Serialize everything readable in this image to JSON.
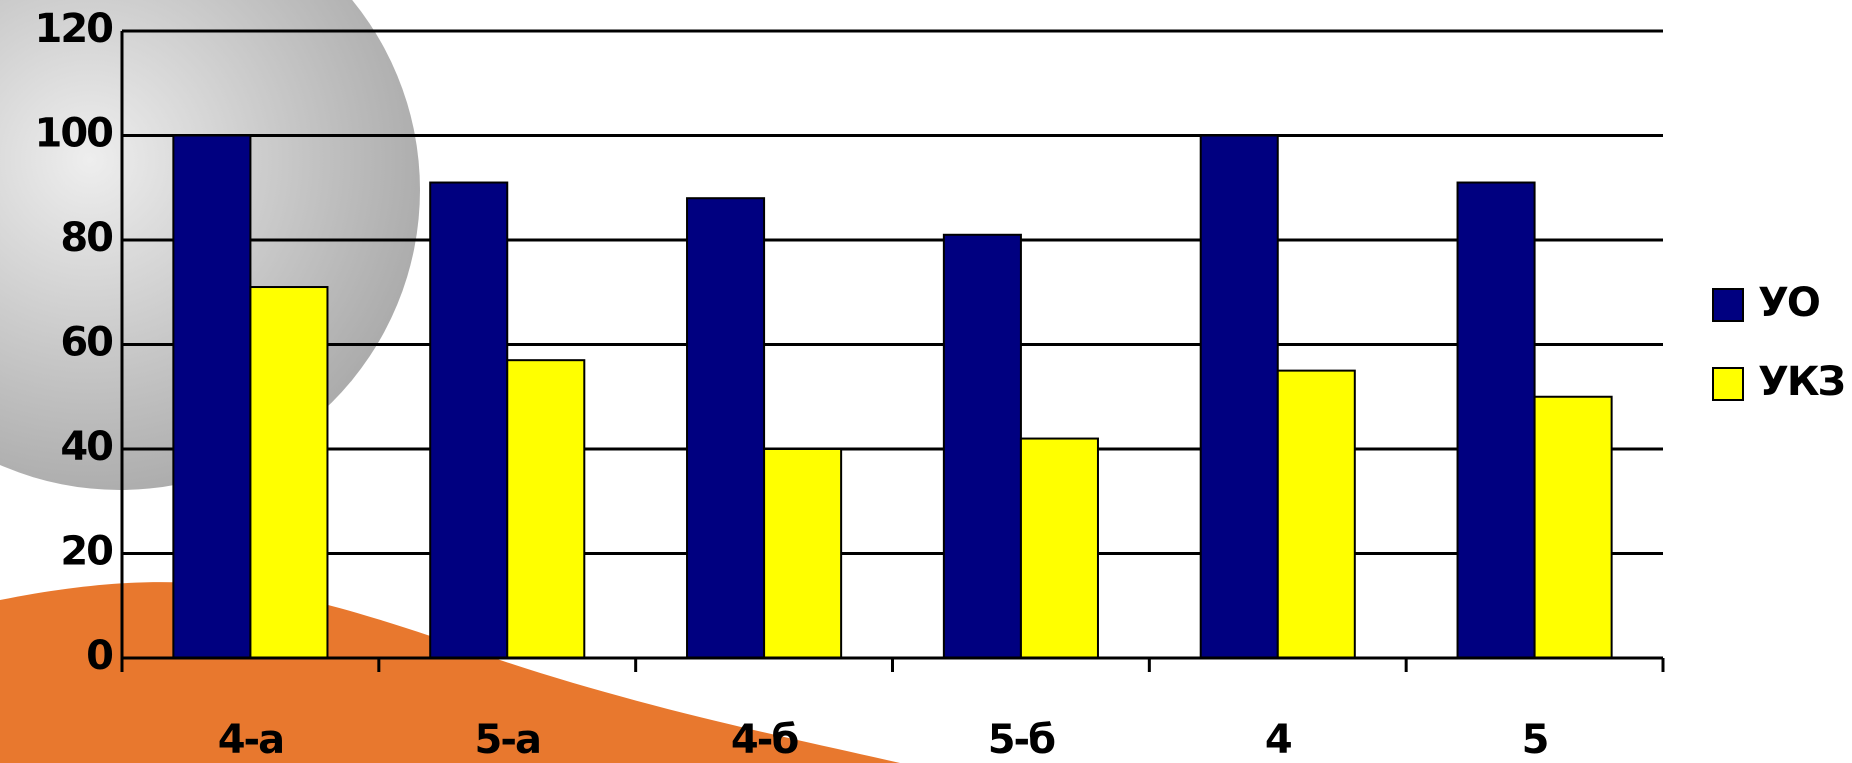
{
  "chart_data": {
    "type": "bar",
    "categories": [
      "4-а",
      "5-а",
      "4-б",
      "5-б",
      "4",
      "5"
    ],
    "series": [
      {
        "name": "УО",
        "color": "#000080",
        "values": [
          100,
          91,
          88,
          81,
          100,
          91
        ]
      },
      {
        "name": "УКЗ",
        "color": "#ffff00",
        "values": [
          71,
          57,
          40,
          42,
          55,
          50
        ]
      }
    ],
    "ylim": [
      0,
      120
    ],
    "yticks": [
      0,
      20,
      40,
      60,
      80,
      100,
      120
    ],
    "grid": true,
    "legend": "right"
  }
}
